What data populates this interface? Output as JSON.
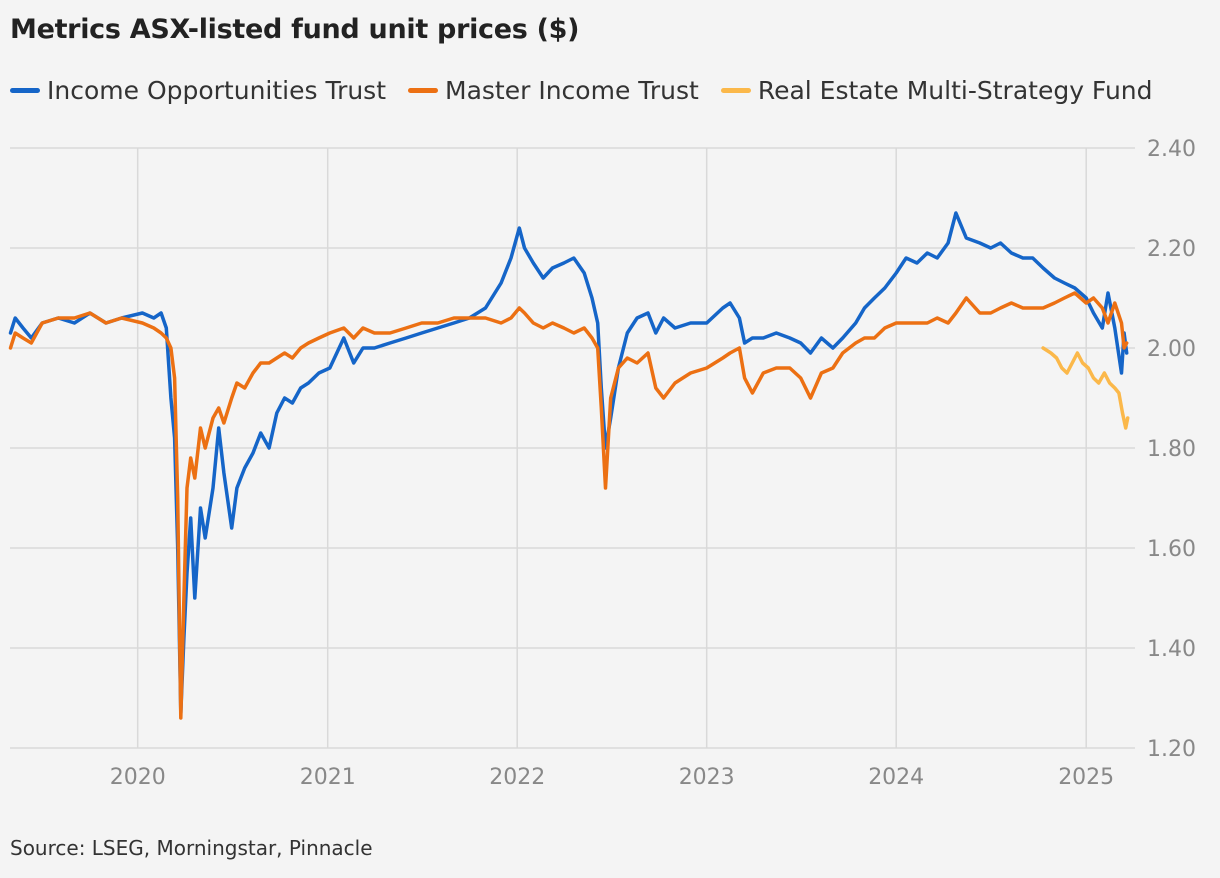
{
  "title": "Metrics ASX-listed fund unit prices ($)",
  "source": "Source: LSEG, Morningstar, Pinnacle",
  "legend": [
    {
      "name": "Income Opportunities Trust",
      "color": "#1565c8"
    },
    {
      "name": "Master Income Trust",
      "color": "#ec7013"
    },
    {
      "name": "Real Estate Multi-Strategy Fund",
      "color": "#fbb84a"
    }
  ],
  "chart_data": {
    "type": "line",
    "title": "Metrics ASX-listed fund unit prices ($)",
    "xlabel": "",
    "ylabel": "",
    "xlim": [
      "2019-04-30",
      "2025-04-05"
    ],
    "ylim": [
      1.2,
      2.4
    ],
    "y_ticks": [
      1.2,
      1.4,
      1.6,
      1.8,
      2.0,
      2.2,
      2.4
    ],
    "y_tick_labels": [
      "1.20",
      "1.40",
      "1.60",
      "1.80",
      "2.00",
      "2.20",
      "2.40"
    ],
    "x_ticks": [
      "2020-01-01",
      "2021-01-01",
      "2022-01-01",
      "2023-01-01",
      "2024-01-01",
      "2025-01-01"
    ],
    "x_tick_labels": [
      "2020",
      "2021",
      "2022",
      "2023",
      "2024",
      "2025"
    ],
    "y_axis_side": "right",
    "grid": true,
    "legend_position": "top",
    "series": [
      {
        "name": "Income Opportunities Trust",
        "color": "#1565c8",
        "points": [
          [
            "2019-05-01",
            2.03
          ],
          [
            "2019-05-10",
            2.06
          ],
          [
            "2019-05-25",
            2.04
          ],
          [
            "2019-06-10",
            2.02
          ],
          [
            "2019-07-01",
            2.05
          ],
          [
            "2019-08-01",
            2.06
          ],
          [
            "2019-09-01",
            2.05
          ],
          [
            "2019-10-01",
            2.07
          ],
          [
            "2019-11-01",
            2.05
          ],
          [
            "2019-12-01",
            2.06
          ],
          [
            "2020-01-10",
            2.07
          ],
          [
            "2020-02-01",
            2.06
          ],
          [
            "2020-02-15",
            2.07
          ],
          [
            "2020-02-25",
            2.04
          ],
          [
            "2020-03-05",
            1.9
          ],
          [
            "2020-03-12",
            1.82
          ],
          [
            "2020-03-18",
            1.6
          ],
          [
            "2020-03-24",
            1.27
          ],
          [
            "2020-03-30",
            1.42
          ],
          [
            "2020-04-05",
            1.55
          ],
          [
            "2020-04-12",
            1.66
          ],
          [
            "2020-04-20",
            1.5
          ],
          [
            "2020-05-01",
            1.68
          ],
          [
            "2020-05-10",
            1.62
          ],
          [
            "2020-05-25",
            1.72
          ],
          [
            "2020-06-05",
            1.84
          ],
          [
            "2020-06-15",
            1.75
          ],
          [
            "2020-06-30",
            1.64
          ],
          [
            "2020-07-10",
            1.72
          ],
          [
            "2020-07-25",
            1.76
          ],
          [
            "2020-08-10",
            1.79
          ],
          [
            "2020-08-25",
            1.83
          ],
          [
            "2020-09-10",
            1.8
          ],
          [
            "2020-09-25",
            1.87
          ],
          [
            "2020-10-10",
            1.9
          ],
          [
            "2020-10-25",
            1.89
          ],
          [
            "2020-11-10",
            1.92
          ],
          [
            "2020-11-25",
            1.93
          ],
          [
            "2020-12-15",
            1.95
          ],
          [
            "2021-01-05",
            1.96
          ],
          [
            "2021-02-01",
            2.02
          ],
          [
            "2021-02-20",
            1.97
          ],
          [
            "2021-03-10",
            2.0
          ],
          [
            "2021-04-01",
            2.0
          ],
          [
            "2021-05-01",
            2.01
          ],
          [
            "2021-06-01",
            2.02
          ],
          [
            "2021-07-01",
            2.03
          ],
          [
            "2021-08-01",
            2.04
          ],
          [
            "2021-09-01",
            2.05
          ],
          [
            "2021-10-01",
            2.06
          ],
          [
            "2021-11-01",
            2.08
          ],
          [
            "2021-12-01",
            2.13
          ],
          [
            "2021-12-20",
            2.18
          ],
          [
            "2022-01-05",
            2.24
          ],
          [
            "2022-01-15",
            2.2
          ],
          [
            "2022-02-01",
            2.17
          ],
          [
            "2022-02-20",
            2.14
          ],
          [
            "2022-03-10",
            2.16
          ],
          [
            "2022-04-01",
            2.17
          ],
          [
            "2022-04-20",
            2.18
          ],
          [
            "2022-05-10",
            2.15
          ],
          [
            "2022-05-25",
            2.1
          ],
          [
            "2022-06-05",
            2.05
          ],
          [
            "2022-06-12",
            1.92
          ],
          [
            "2022-06-20",
            1.8
          ],
          [
            "2022-06-30",
            1.86
          ],
          [
            "2022-07-15",
            1.96
          ],
          [
            "2022-08-01",
            2.03
          ],
          [
            "2022-08-20",
            2.06
          ],
          [
            "2022-09-10",
            2.07
          ],
          [
            "2022-09-25",
            2.03
          ],
          [
            "2022-10-10",
            2.06
          ],
          [
            "2022-11-01",
            2.04
          ],
          [
            "2022-12-01",
            2.05
          ],
          [
            "2023-01-01",
            2.05
          ],
          [
            "2023-02-01",
            2.08
          ],
          [
            "2023-02-15",
            2.09
          ],
          [
            "2023-03-05",
            2.06
          ],
          [
            "2023-03-15",
            2.01
          ],
          [
            "2023-03-30",
            2.02
          ],
          [
            "2023-04-20",
            2.02
          ],
          [
            "2023-05-15",
            2.03
          ],
          [
            "2023-06-10",
            2.02
          ],
          [
            "2023-07-01",
            2.01
          ],
          [
            "2023-07-20",
            1.99
          ],
          [
            "2023-08-10",
            2.02
          ],
          [
            "2023-09-01",
            2.0
          ],
          [
            "2023-09-20",
            2.02
          ],
          [
            "2023-10-15",
            2.05
          ],
          [
            "2023-11-01",
            2.08
          ],
          [
            "2023-11-20",
            2.1
          ],
          [
            "2023-12-10",
            2.12
          ],
          [
            "2024-01-01",
            2.15
          ],
          [
            "2024-01-20",
            2.18
          ],
          [
            "2024-02-10",
            2.17
          ],
          [
            "2024-03-01",
            2.19
          ],
          [
            "2024-03-20",
            2.18
          ],
          [
            "2024-04-10",
            2.21
          ],
          [
            "2024-04-25",
            2.27
          ],
          [
            "2024-05-15",
            2.22
          ],
          [
            "2024-06-10",
            2.21
          ],
          [
            "2024-07-01",
            2.2
          ],
          [
            "2024-07-20",
            2.21
          ],
          [
            "2024-08-10",
            2.19
          ],
          [
            "2024-09-01",
            2.18
          ],
          [
            "2024-09-20",
            2.18
          ],
          [
            "2024-10-10",
            2.16
          ],
          [
            "2024-11-01",
            2.14
          ],
          [
            "2024-11-20",
            2.13
          ],
          [
            "2024-12-10",
            2.12
          ],
          [
            "2025-01-01",
            2.1
          ],
          [
            "2025-01-15",
            2.07
          ],
          [
            "2025-02-01",
            2.04
          ],
          [
            "2025-02-12",
            2.11
          ],
          [
            "2025-02-25",
            2.04
          ],
          [
            "2025-03-10",
            1.95
          ],
          [
            "2025-03-15",
            2.03
          ],
          [
            "2025-03-20",
            1.99
          ]
        ]
      },
      {
        "name": "Master Income Trust",
        "color": "#ec7013",
        "points": [
          [
            "2019-05-01",
            2.0
          ],
          [
            "2019-05-10",
            2.03
          ],
          [
            "2019-05-25",
            2.02
          ],
          [
            "2019-06-10",
            2.01
          ],
          [
            "2019-07-01",
            2.05
          ],
          [
            "2019-08-01",
            2.06
          ],
          [
            "2019-09-01",
            2.06
          ],
          [
            "2019-10-01",
            2.07
          ],
          [
            "2019-11-01",
            2.05
          ],
          [
            "2019-12-01",
            2.06
          ],
          [
            "2020-01-10",
            2.05
          ],
          [
            "2020-02-01",
            2.04
          ],
          [
            "2020-02-15",
            2.03
          ],
          [
            "2020-02-25",
            2.02
          ],
          [
            "2020-03-05",
            2.0
          ],
          [
            "2020-03-12",
            1.94
          ],
          [
            "2020-03-18",
            1.7
          ],
          [
            "2020-03-24",
            1.26
          ],
          [
            "2020-03-30",
            1.5
          ],
          [
            "2020-04-05",
            1.72
          ],
          [
            "2020-04-12",
            1.78
          ],
          [
            "2020-04-20",
            1.74
          ],
          [
            "2020-05-01",
            1.84
          ],
          [
            "2020-05-10",
            1.8
          ],
          [
            "2020-05-25",
            1.86
          ],
          [
            "2020-06-05",
            1.88
          ],
          [
            "2020-06-15",
            1.85
          ],
          [
            "2020-06-30",
            1.9
          ],
          [
            "2020-07-10",
            1.93
          ],
          [
            "2020-07-25",
            1.92
          ],
          [
            "2020-08-10",
            1.95
          ],
          [
            "2020-08-25",
            1.97
          ],
          [
            "2020-09-10",
            1.97
          ],
          [
            "2020-09-25",
            1.98
          ],
          [
            "2020-10-10",
            1.99
          ],
          [
            "2020-10-25",
            1.98
          ],
          [
            "2020-11-10",
            2.0
          ],
          [
            "2020-11-25",
            2.01
          ],
          [
            "2020-12-15",
            2.02
          ],
          [
            "2021-01-05",
            2.03
          ],
          [
            "2021-02-01",
            2.04
          ],
          [
            "2021-02-20",
            2.02
          ],
          [
            "2021-03-10",
            2.04
          ],
          [
            "2021-04-01",
            2.03
          ],
          [
            "2021-05-01",
            2.03
          ],
          [
            "2021-06-01",
            2.04
          ],
          [
            "2021-07-01",
            2.05
          ],
          [
            "2021-08-01",
            2.05
          ],
          [
            "2021-09-01",
            2.06
          ],
          [
            "2021-10-01",
            2.06
          ],
          [
            "2021-11-01",
            2.06
          ],
          [
            "2021-12-01",
            2.05
          ],
          [
            "2021-12-20",
            2.06
          ],
          [
            "2022-01-05",
            2.08
          ],
          [
            "2022-01-15",
            2.07
          ],
          [
            "2022-02-01",
            2.05
          ],
          [
            "2022-02-20",
            2.04
          ],
          [
            "2022-03-10",
            2.05
          ],
          [
            "2022-04-01",
            2.04
          ],
          [
            "2022-04-20",
            2.03
          ],
          [
            "2022-05-10",
            2.04
          ],
          [
            "2022-05-25",
            2.02
          ],
          [
            "2022-06-05",
            2.0
          ],
          [
            "2022-06-12",
            1.88
          ],
          [
            "2022-06-20",
            1.72
          ],
          [
            "2022-06-30",
            1.9
          ],
          [
            "2022-07-15",
            1.96
          ],
          [
            "2022-08-01",
            1.98
          ],
          [
            "2022-08-20",
            1.97
          ],
          [
            "2022-09-10",
            1.99
          ],
          [
            "2022-09-25",
            1.92
          ],
          [
            "2022-10-10",
            1.9
          ],
          [
            "2022-11-01",
            1.93
          ],
          [
            "2022-12-01",
            1.95
          ],
          [
            "2023-01-01",
            1.96
          ],
          [
            "2023-02-01",
            1.98
          ],
          [
            "2023-02-15",
            1.99
          ],
          [
            "2023-03-05",
            2.0
          ],
          [
            "2023-03-15",
            1.94
          ],
          [
            "2023-03-30",
            1.91
          ],
          [
            "2023-04-20",
            1.95
          ],
          [
            "2023-05-15",
            1.96
          ],
          [
            "2023-06-10",
            1.96
          ],
          [
            "2023-07-01",
            1.94
          ],
          [
            "2023-07-20",
            1.9
          ],
          [
            "2023-08-10",
            1.95
          ],
          [
            "2023-09-01",
            1.96
          ],
          [
            "2023-09-20",
            1.99
          ],
          [
            "2023-10-15",
            2.01
          ],
          [
            "2023-11-01",
            2.02
          ],
          [
            "2023-11-20",
            2.02
          ],
          [
            "2023-12-10",
            2.04
          ],
          [
            "2024-01-01",
            2.05
          ],
          [
            "2024-01-20",
            2.05
          ],
          [
            "2024-02-10",
            2.05
          ],
          [
            "2024-03-01",
            2.05
          ],
          [
            "2024-03-20",
            2.06
          ],
          [
            "2024-04-10",
            2.05
          ],
          [
            "2024-04-25",
            2.07
          ],
          [
            "2024-05-15",
            2.1
          ],
          [
            "2024-06-10",
            2.07
          ],
          [
            "2024-07-01",
            2.07
          ],
          [
            "2024-07-20",
            2.08
          ],
          [
            "2024-08-10",
            2.09
          ],
          [
            "2024-09-01",
            2.08
          ],
          [
            "2024-09-20",
            2.08
          ],
          [
            "2024-10-10",
            2.08
          ],
          [
            "2024-11-01",
            2.09
          ],
          [
            "2024-11-20",
            2.1
          ],
          [
            "2024-12-10",
            2.11
          ],
          [
            "2025-01-01",
            2.09
          ],
          [
            "2025-01-15",
            2.1
          ],
          [
            "2025-02-01",
            2.08
          ],
          [
            "2025-02-12",
            2.05
          ],
          [
            "2025-02-25",
            2.09
          ],
          [
            "2025-03-10",
            2.05
          ],
          [
            "2025-03-15",
            2.0
          ],
          [
            "2025-03-20",
            2.01
          ]
        ]
      },
      {
        "name": "Real Estate Multi-Strategy Fund",
        "color": "#fbb84a",
        "points": [
          [
            "2024-10-10",
            2.0
          ],
          [
            "2024-10-25",
            1.99
          ],
          [
            "2024-11-05",
            1.98
          ],
          [
            "2024-11-15",
            1.96
          ],
          [
            "2024-11-25",
            1.95
          ],
          [
            "2024-12-05",
            1.97
          ],
          [
            "2024-12-15",
            1.99
          ],
          [
            "2024-12-25",
            1.97
          ],
          [
            "2025-01-05",
            1.96
          ],
          [
            "2025-01-15",
            1.94
          ],
          [
            "2025-01-25",
            1.93
          ],
          [
            "2025-02-05",
            1.95
          ],
          [
            "2025-02-15",
            1.93
          ],
          [
            "2025-02-25",
            1.92
          ],
          [
            "2025-03-05",
            1.91
          ],
          [
            "2025-03-12",
            1.87
          ],
          [
            "2025-03-18",
            1.84
          ],
          [
            "2025-03-22",
            1.86
          ]
        ]
      }
    ]
  }
}
